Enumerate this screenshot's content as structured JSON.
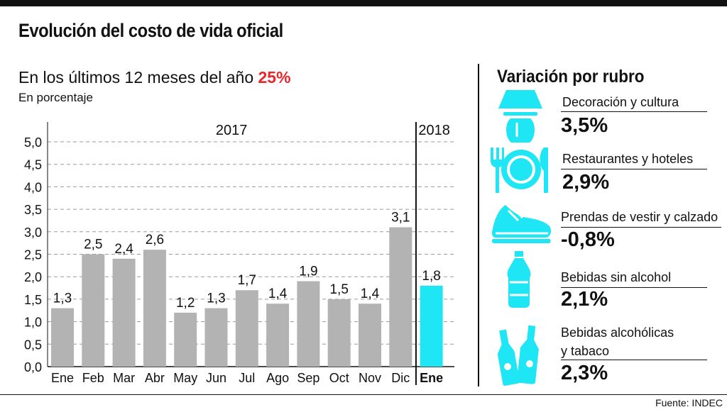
{
  "header": {
    "title": "Evolución del costo de vida oficial",
    "subtitle_text": "En los últimos 12 meses del año",
    "subtitle_highlight": "25%",
    "unit_label": "En porcentaje"
  },
  "chart_data": {
    "type": "bar",
    "categories": [
      "Ene",
      "Feb",
      "Mar",
      "Abr",
      "May",
      "Jun",
      "Jul",
      "Ago",
      "Sep",
      "Oct",
      "Nov",
      "Dic",
      "Ene"
    ],
    "values": [
      1.3,
      2.5,
      2.4,
      2.6,
      1.2,
      1.3,
      1.7,
      1.4,
      1.9,
      1.5,
      1.4,
      3.1,
      1.8
    ],
    "value_labels": [
      "1,3",
      "2,5",
      "2,4",
      "2,6",
      "1,2",
      "1,3",
      "1,7",
      "1,4",
      "1,9",
      "1,5",
      "1,4",
      "3,1",
      "1,8"
    ],
    "year_groups": [
      "2017",
      "2017",
      "2017",
      "2017",
      "2017",
      "2017",
      "2017",
      "2017",
      "2017",
      "2017",
      "2017",
      "2017",
      "2018"
    ],
    "year_labels": [
      "2017",
      "2018"
    ],
    "y_ticks": [
      "0,0",
      "0,5",
      "1,0",
      "1,5",
      "2,0",
      "2,5",
      "3,0",
      "3,5",
      "4,0",
      "4,5",
      "5,0"
    ],
    "ylim": [
      0,
      5
    ],
    "grid": true,
    "colors": {
      "2017": "#b3b3b3",
      "2018": "#1ee6f4"
    }
  },
  "sidebar": {
    "title": "Variación por rubro",
    "icon_color": "#1ee6f4",
    "items": [
      {
        "name": "Decoración y cultura",
        "value": "3,5%",
        "icon": "lamp-icon"
      },
      {
        "name": "Restaurantes y hoteles",
        "value": "2,9%",
        "icon": "plate-cutlery-icon"
      },
      {
        "name": "Prendas de vestir y calzado",
        "value": "-0,8%",
        "icon": "sneaker-icon"
      },
      {
        "name": "Bebidas sin alcohol",
        "value": "2,1%",
        "icon": "bottle-icon"
      },
      {
        "name": "Bebidas alcohólicas",
        "name2": "y tabaco",
        "value": "2,3%",
        "icon": "beer-bottles-icon"
      }
    ]
  },
  "footer": {
    "source": "Fuente: INDEC"
  }
}
